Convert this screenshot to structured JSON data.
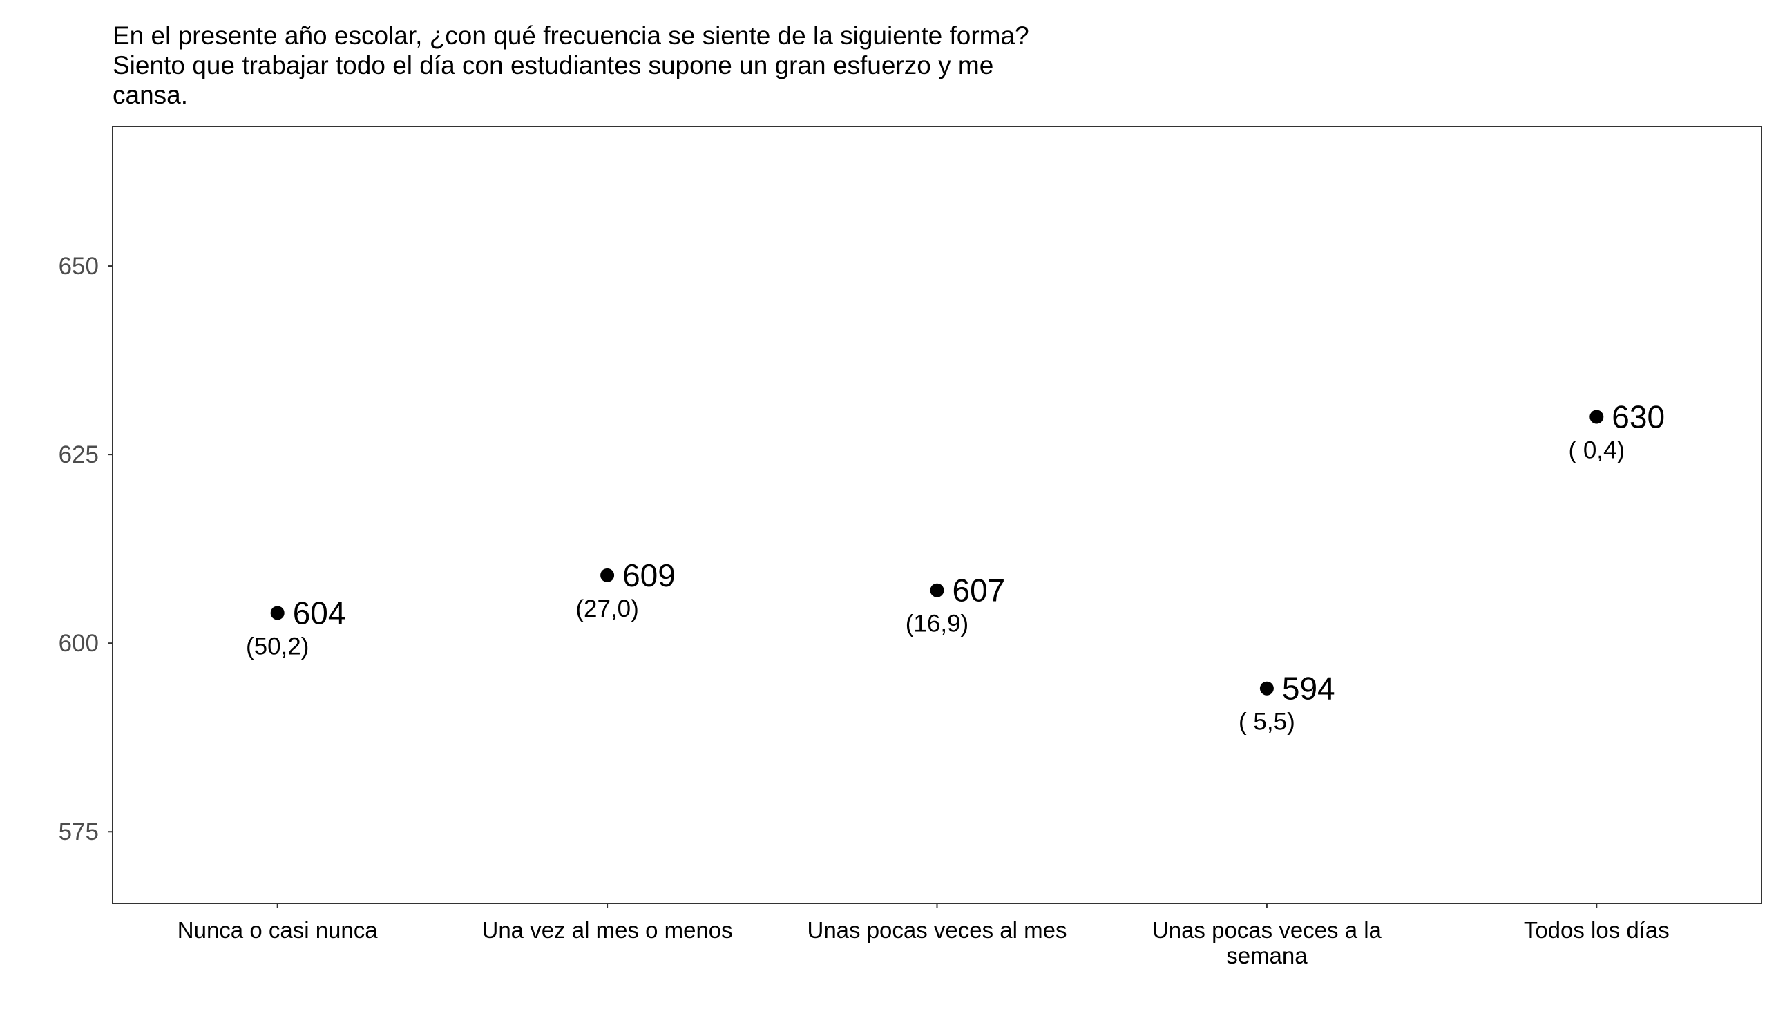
{
  "chart_data": {
    "type": "scatter",
    "title_lines": [
      "En el presente año escolar, ¿con qué frecuencia se siente de la siguiente forma?",
      "Siento que trabajar todo el día con estudiantes supone un gran esfuerzo y me",
      "cansa."
    ],
    "categories": [
      [
        "Nunca o casi nunca"
      ],
      [
        "Una vez al mes o menos"
      ],
      [
        "Unas pocas veces al mes"
      ],
      [
        "Unas pocas veces a la",
        "semana"
      ],
      [
        "Todos los días"
      ]
    ],
    "values": [
      604,
      609,
      607,
      594,
      630
    ],
    "value_labels": [
      "604",
      "609",
      "607",
      "594",
      "630"
    ],
    "percent_labels": [
      "(50,2)",
      "(27,0)",
      "(16,9)",
      "( 5,5)",
      "( 0,4)"
    ],
    "yticks": [
      575,
      600,
      625,
      650
    ],
    "ylim": [
      565.5,
      668.5
    ],
    "grid": false,
    "colors": {
      "point": "#000000",
      "axis_text": "#4d4d4d",
      "frame": "#333333"
    }
  }
}
